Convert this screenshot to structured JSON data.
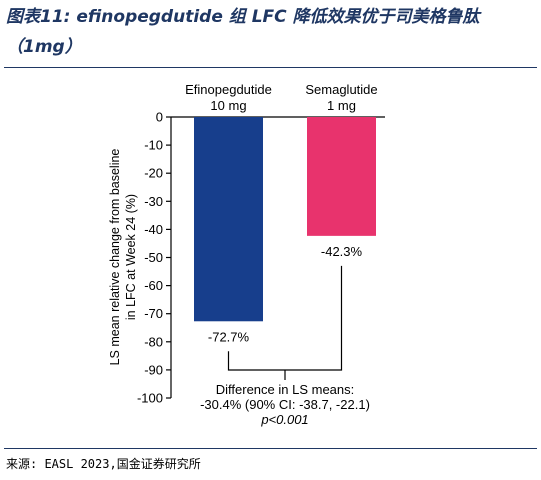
{
  "header": {
    "title": "图表11: efinopegdutide 组 LFC 降低效果优于司美格鲁肽（1mg）"
  },
  "footer": {
    "source": "来源: EASL 2023,国金证券研究所"
  },
  "chart_data": {
    "type": "bar",
    "categories": [
      "Efinopegdutide\n10 mg",
      "Semaglutide\n1 mg"
    ],
    "values": [
      -72.7,
      -42.3
    ],
    "value_labels": [
      "-72.7%",
      "-42.3%"
    ],
    "colors": [
      "#173e8c",
      "#e8336d"
    ],
    "ylabel_lines": [
      "LS mean relative change from baseline",
      "in LFC at Week 24 (%)"
    ],
    "xlabel": "",
    "ylim": [
      -100,
      0
    ],
    "yticks": [
      0,
      -10,
      -20,
      -30,
      -40,
      -50,
      -60,
      -70,
      -80,
      -90,
      -100
    ],
    "grid": false,
    "annotation": [
      "Difference in LS means:",
      "-30.4% (90% CI: -38.7, -22.1)",
      "p<0.001"
    ]
  }
}
